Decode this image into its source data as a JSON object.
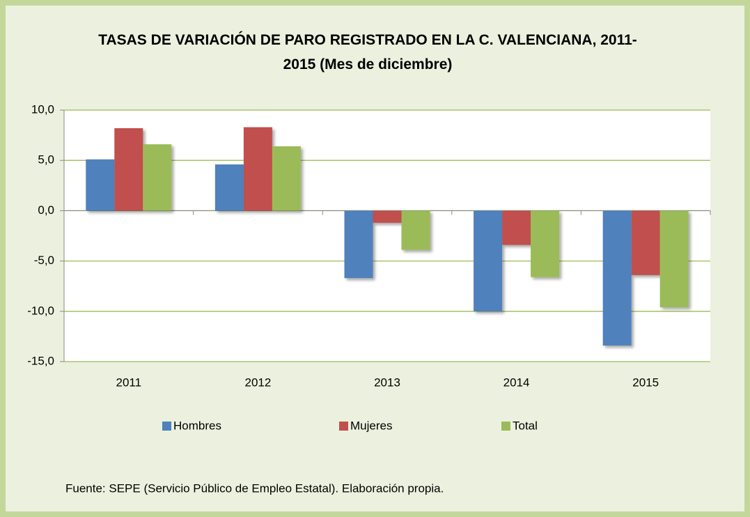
{
  "chart_data": {
    "type": "bar",
    "title": "TASAS DE VARIACIÓN DE PARO REGISTRADO EN LA C. VALENCIANA, 2011-2015 (Mes de diciembre)",
    "categories": [
      "2011",
      "2012",
      "2013",
      "2014",
      "2015"
    ],
    "series": [
      {
        "name": "Hombres",
        "color": "#4f81bd",
        "values": [
          5.1,
          4.6,
          -6.7,
          -10.0,
          -13.4
        ]
      },
      {
        "name": "Mujeres",
        "color": "#c0504d",
        "values": [
          8.2,
          8.3,
          -1.2,
          -3.4,
          -6.4
        ]
      },
      {
        "name": "Total",
        "color": "#9bbb59",
        "values": [
          6.6,
          6.4,
          -3.9,
          -6.6,
          -9.6
        ]
      }
    ],
    "ylim": [
      -15,
      10
    ],
    "yticks": [
      {
        "value": 10,
        "label": "10,0"
      },
      {
        "value": 5,
        "label": "5,0"
      },
      {
        "value": 0,
        "label": "0,0"
      },
      {
        "value": -5,
        "label": "-5,0"
      },
      {
        "value": -10,
        "label": "-10,0"
      },
      {
        "value": -15,
        "label": "-15,0"
      }
    ],
    "grid": true,
    "legend": "bottom",
    "source": "Fuente: SEPE (Servicio Público de Empleo Estatal). Elaboración propia."
  }
}
